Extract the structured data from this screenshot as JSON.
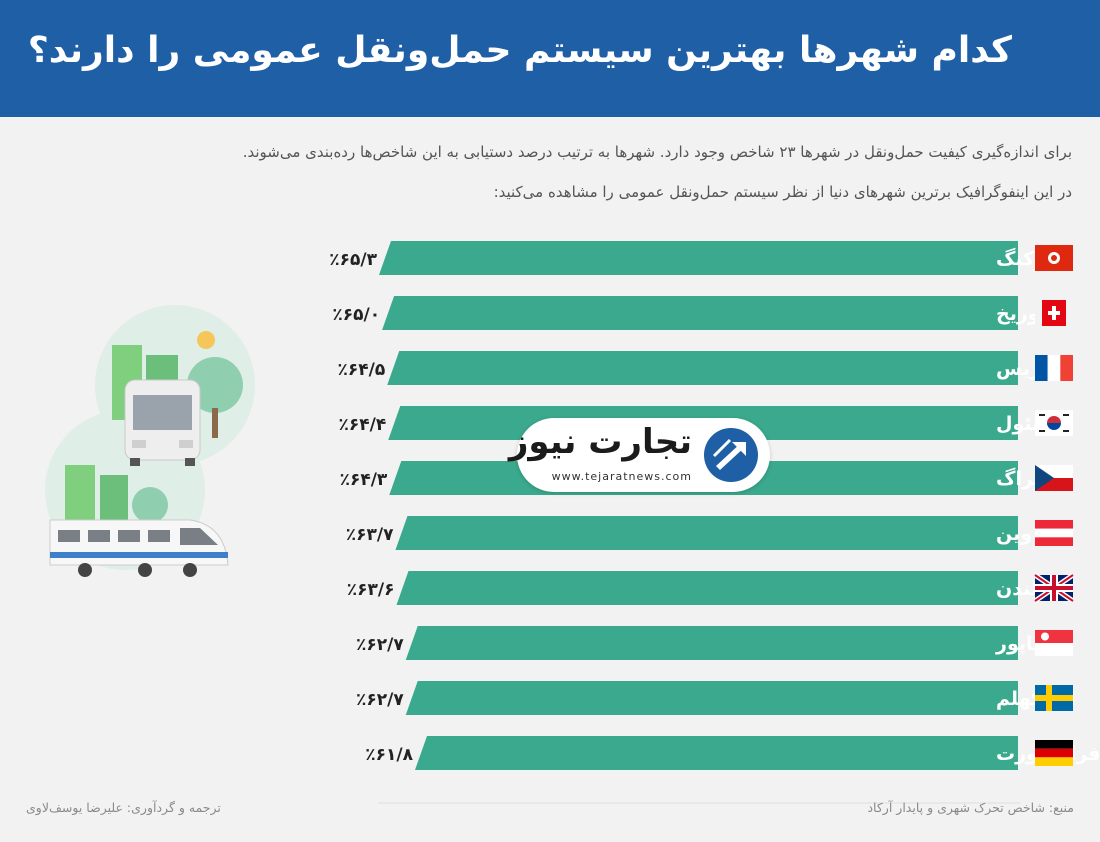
{
  "header": {
    "title": "کدام شهرها بهترین سیستم حمل‌ونقل عمومی را دارند؟",
    "subtitle_line1": "برای اندازه‌گیری کیفیت حمل‌ونقل در شهرها ۲۳ شاخص وجود دارد. شهرها به ترتیب درصد دستیابی به این شاخص‌ها رده‌بندی می‌شوند.",
    "subtitle_line2": "در این اینفوگرافیک برترین شهرهای دنیا از نظر سیستم حمل‌ونقل عمومی را مشاهده می‌کنید:"
  },
  "colors": {
    "header": "#1f5fa6",
    "bar": "#3aa98d",
    "bar_shadow": "#d8dcdb"
  },
  "chart_data": {
    "type": "bar",
    "orientation": "horizontal",
    "categories": [
      "هنگ‌کنگ",
      "زوریخ",
      "پاریس",
      "سئول",
      "پراگ",
      "وین",
      "لندن",
      "سنگاپور",
      "استکهلم",
      "فرانکفورت"
    ],
    "values": [
      65.3,
      65.0,
      64.5,
      64.4,
      64.3,
      63.7,
      63.6,
      62.7,
      62.7,
      61.8
    ],
    "value_labels": [
      "٪۶۵/۳",
      "٪۶۵/۰",
      "٪۶۴/۵",
      "٪۶۴/۴",
      "٪۶۴/۳",
      "٪۶۳/۷",
      "٪۶۳/۶",
      "٪۶۲/۷",
      "٪۶۲/۷",
      "٪۶۱/۸"
    ],
    "flags": [
      "hong-kong-flag",
      "switzerland-flag",
      "france-flag",
      "south-korea-flag",
      "czech-flag",
      "austria-flag",
      "uk-flag",
      "singapore-flag",
      "sweden-flag",
      "germany-flag"
    ],
    "ylim": [
      0,
      100
    ]
  },
  "logo": {
    "name": "تجارت نیوز",
    "url": "www.tejaratnews.com"
  },
  "footer": {
    "source": "منبع: شاخص تحرک شهری و پایدار آرکاد",
    "credit": "ترجمه و گردآوری: علیرضا یوسف‌لاوی"
  }
}
